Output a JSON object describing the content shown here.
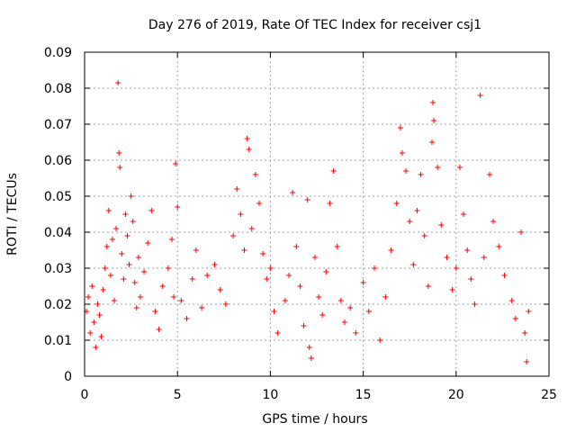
{
  "chart_data": {
    "type": "scatter",
    "title": "Day 276 of 2019, Rate Of TEC Index for receiver csj1",
    "xlabel": "GPS time / hours",
    "ylabel": "ROTI / TECUs",
    "xlim": [
      0,
      25
    ],
    "ylim": [
      0,
      0.09
    ],
    "x_ticks": [
      "0",
      "5",
      "10",
      "15",
      "20",
      "25"
    ],
    "y_ticks": [
      "0",
      "0.01",
      "0.02",
      "0.03",
      "0.04",
      "0.05",
      "0.06",
      "0.07",
      "0.08",
      "0.09"
    ],
    "grid": true,
    "marker": "+",
    "color": "#ff0000",
    "series": [
      {
        "name": "ROTI",
        "points": [
          [
            0.1,
            0.018
          ],
          [
            0.2,
            0.022
          ],
          [
            0.3,
            0.012
          ],
          [
            0.4,
            0.025
          ],
          [
            0.5,
            0.015
          ],
          [
            0.6,
            0.008
          ],
          [
            0.7,
            0.02
          ],
          [
            0.8,
            0.017
          ],
          [
            0.9,
            0.011
          ],
          [
            1.0,
            0.024
          ],
          [
            1.1,
            0.03
          ],
          [
            1.2,
            0.036
          ],
          [
            1.3,
            0.046
          ],
          [
            1.4,
            0.028
          ],
          [
            1.5,
            0.038
          ],
          [
            1.6,
            0.021
          ],
          [
            1.7,
            0.041
          ],
          [
            1.8,
            0.0815
          ],
          [
            1.85,
            0.062
          ],
          [
            1.9,
            0.058
          ],
          [
            2.0,
            0.034
          ],
          [
            2.1,
            0.027
          ],
          [
            2.2,
            0.045
          ],
          [
            2.3,
            0.039
          ],
          [
            2.4,
            0.031
          ],
          [
            2.5,
            0.05
          ],
          [
            2.6,
            0.043
          ],
          [
            2.7,
            0.026
          ],
          [
            2.8,
            0.019
          ],
          [
            2.9,
            0.033
          ],
          [
            3.0,
            0.022
          ],
          [
            3.2,
            0.029
          ],
          [
            3.4,
            0.037
          ],
          [
            3.6,
            0.046
          ],
          [
            3.8,
            0.018
          ],
          [
            4.0,
            0.013
          ],
          [
            4.2,
            0.025
          ],
          [
            4.5,
            0.03
          ],
          [
            4.7,
            0.038
          ],
          [
            4.8,
            0.022
          ],
          [
            4.9,
            0.059
          ],
          [
            5.0,
            0.047
          ],
          [
            5.2,
            0.021
          ],
          [
            5.5,
            0.016
          ],
          [
            5.8,
            0.027
          ],
          [
            6.0,
            0.035
          ],
          [
            6.3,
            0.019
          ],
          [
            6.6,
            0.028
          ],
          [
            7.0,
            0.031
          ],
          [
            7.3,
            0.024
          ],
          [
            7.6,
            0.02
          ],
          [
            8.0,
            0.039
          ],
          [
            8.2,
            0.052
          ],
          [
            8.4,
            0.045
          ],
          [
            8.6,
            0.035
          ],
          [
            8.75,
            0.066
          ],
          [
            8.85,
            0.063
          ],
          [
            9.0,
            0.041
          ],
          [
            9.2,
            0.056
          ],
          [
            9.4,
            0.048
          ],
          [
            9.6,
            0.034
          ],
          [
            9.8,
            0.027
          ],
          [
            10.0,
            0.03
          ],
          [
            10.2,
            0.018
          ],
          [
            10.4,
            0.012
          ],
          [
            10.8,
            0.021
          ],
          [
            11.0,
            0.028
          ],
          [
            11.2,
            0.051
          ],
          [
            11.4,
            0.036
          ],
          [
            11.6,
            0.025
          ],
          [
            11.8,
            0.014
          ],
          [
            12.0,
            0.049
          ],
          [
            12.1,
            0.008
          ],
          [
            12.2,
            0.005
          ],
          [
            12.4,
            0.033
          ],
          [
            12.6,
            0.022
          ],
          [
            12.8,
            0.017
          ],
          [
            13.0,
            0.029
          ],
          [
            13.2,
            0.048
          ],
          [
            13.4,
            0.057
          ],
          [
            13.6,
            0.036
          ],
          [
            13.8,
            0.021
          ],
          [
            14.0,
            0.015
          ],
          [
            14.3,
            0.019
          ],
          [
            14.6,
            0.012
          ],
          [
            15.0,
            0.026
          ],
          [
            15.3,
            0.018
          ],
          [
            15.6,
            0.03
          ],
          [
            15.9,
            0.01
          ],
          [
            16.2,
            0.022
          ],
          [
            16.5,
            0.035
          ],
          [
            16.8,
            0.048
          ],
          [
            17.0,
            0.069
          ],
          [
            17.1,
            0.062
          ],
          [
            17.3,
            0.057
          ],
          [
            17.5,
            0.043
          ],
          [
            17.7,
            0.031
          ],
          [
            17.9,
            0.046
          ],
          [
            18.1,
            0.056
          ],
          [
            18.3,
            0.039
          ],
          [
            18.5,
            0.025
          ],
          [
            18.7,
            0.065
          ],
          [
            18.75,
            0.076
          ],
          [
            18.8,
            0.071
          ],
          [
            19.0,
            0.058
          ],
          [
            19.2,
            0.042
          ],
          [
            19.5,
            0.033
          ],
          [
            19.8,
            0.024
          ],
          [
            20.0,
            0.03
          ],
          [
            20.2,
            0.058
          ],
          [
            20.4,
            0.045
          ],
          [
            20.6,
            0.035
          ],
          [
            20.8,
            0.027
          ],
          [
            21.0,
            0.02
          ],
          [
            21.3,
            0.078
          ],
          [
            21.5,
            0.033
          ],
          [
            21.8,
            0.056
          ],
          [
            22.0,
            0.043
          ],
          [
            22.3,
            0.036
          ],
          [
            22.6,
            0.028
          ],
          [
            23.0,
            0.021
          ],
          [
            23.2,
            0.016
          ],
          [
            23.5,
            0.04
          ],
          [
            23.7,
            0.012
          ],
          [
            23.8,
            0.004
          ],
          [
            23.9,
            0.018
          ]
        ]
      }
    ]
  }
}
